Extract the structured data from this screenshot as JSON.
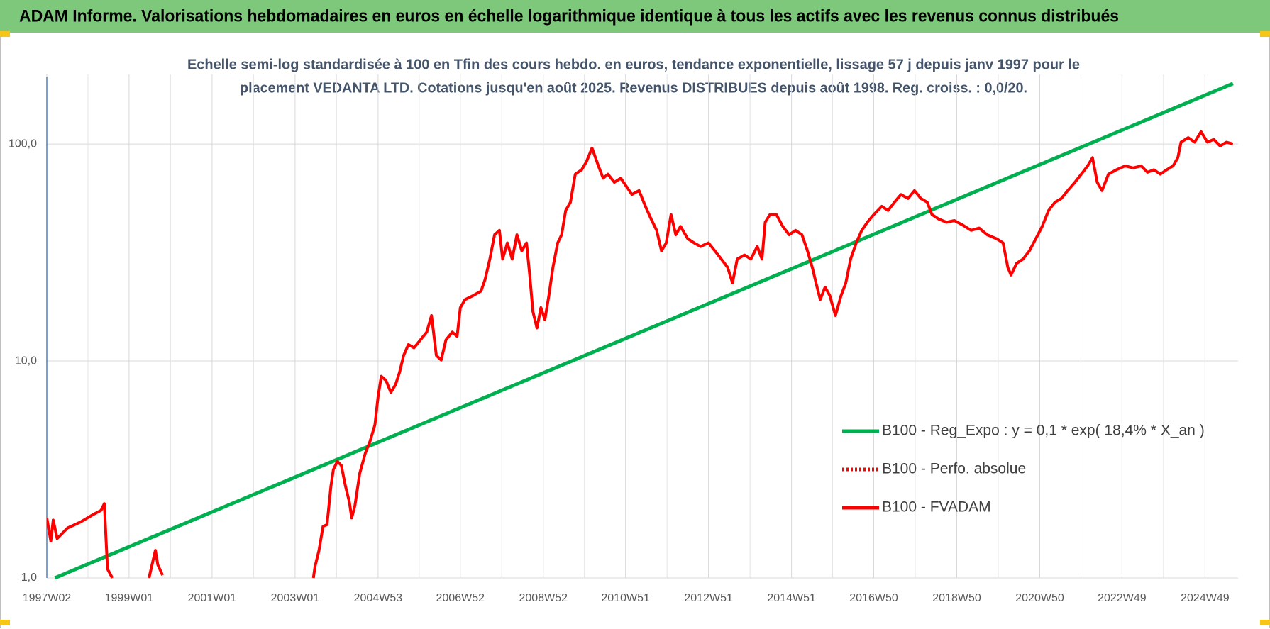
{
  "chart_data": {
    "type": "line",
    "title": "ADAM Informe. Valorisations hebdomadaires en euros en échelle logarithmique identique à tous les actifs avec les revenus connus distribués",
    "subtitle": [
      "Echelle semi-log standardisée à 100 en Tfin des cours hebdo. en euros, tendance exponentielle, lissage 57 j depuis janv 1997 pour le",
      "placement VEDANTA LTD. Cotations jusqu'en août 2025. Revenus DISTRIBUES depuis août 1998. Reg. croiss. : 0,0/20."
    ],
    "log_scale": true,
    "grid": true,
    "legend": "right",
    "ylim": [
      1,
      200
    ],
    "yticks": [
      {
        "value": 1,
        "label": "1,0"
      },
      {
        "value": 10,
        "label": "10,0"
      },
      {
        "value": 100,
        "label": "100,0"
      }
    ],
    "xticks": [
      "1997W02",
      "1999W01",
      "2001W01",
      "2003W01",
      "2004W53",
      "2006W52",
      "2008W52",
      "2010W51",
      "2012W51",
      "2014W51",
      "2016W50",
      "2018W50",
      "2020W50",
      "2022W49",
      "2024W49"
    ],
    "series": [
      {
        "name": "B100 - Reg_Expo : y = 0,1 * exp( 18,4% *  X_an )",
        "color": "#00b050",
        "dash": "solid",
        "x": [
          "1997W12",
          "2025W32"
        ],
        "values": [
          1.0,
          190
        ]
      },
      {
        "name": "B100 - Perfo. absolue",
        "color": "#ff0000",
        "dash": "dotted",
        "x": [],
        "values": []
      },
      {
        "name": "B100 - FVADAM",
        "color": "#ff0000",
        "dash": "solid",
        "x": [
          "1997W02",
          "1997W07",
          "1997W10",
          "1997W15",
          "1997W28",
          "1997W44",
          "1998W07",
          "1998W18",
          "1998W22",
          "1998W26",
          "1998W32",
          null,
          "1999W26",
          "1999W34",
          "1999W37",
          "1999W43",
          null,
          "2003W24",
          "2003W26",
          "2003W31",
          "2003W36",
          "2003W41",
          "2003W46",
          "2003W49",
          "2004W02",
          "2004W07",
          "2004W12",
          "2004W17",
          "2004W20",
          "2004W24",
          "2004W30",
          "2004W37",
          "2004W43",
          "2004W49",
          "2005W01",
          "2005W05",
          "2005W11",
          "2005W17",
          "2005W23",
          "2005W28",
          "2005W33",
          "2005W39",
          "2005W46",
          "2006W02",
          "2006W10",
          "2006W16",
          "2006W22",
          "2006W28",
          "2006W34",
          "2006W42",
          "2006W48",
          "2006W52",
          "2007W06",
          "2007W16",
          "2007W26",
          "2007W31",
          "2007W37",
          "2007W43",
          "2007W49",
          "2008W01",
          "2008W07",
          "2008W13",
          "2008W19",
          "2008W25",
          "2008W31",
          "2008W35",
          "2008W39",
          "2008W44",
          "2008W49",
          "2009W02",
          "2009W07",
          "2009W12",
          "2009W18",
          "2009W23",
          "2009W28",
          "2009W34",
          "2009W40",
          "2009W48",
          "2010W02",
          "2010W09",
          "2010W17",
          "2010W23",
          "2010W29",
          "2010W37",
          "2010W45",
          "2010W52",
          "2011W07",
          "2011W16",
          "2011W24",
          "2011W31",
          "2011W38",
          "2011W44",
          "2011W50",
          "2012W04",
          "2012W10",
          "2012W16",
          "2012W25",
          "2012W33",
          "2012W41",
          "2012W51",
          "2013W07",
          "2013W15",
          "2013W23",
          "2013W29",
          "2013W35",
          "2013W44",
          "2013W52",
          "2014W08",
          "2014W14",
          "2014W18",
          "2014W24",
          "2014W32",
          "2014W40",
          "2014W48",
          "2015W04",
          "2015W12",
          "2015W19",
          "2015W25",
          "2015W31",
          "2015W35",
          "2015W41",
          "2015W47",
          "2016W02",
          "2016W09",
          "2016W15",
          "2016W21",
          "2016W28",
          "2016W35",
          "2016W42",
          "2016W50",
          "2017W08",
          "2017W16",
          "2017W24",
          "2017W32",
          "2017W41",
          "2017W49",
          "2018W05",
          "2018W13",
          "2018W19",
          "2018W27",
          "2018W37",
          "2018W47",
          "2019W05",
          "2019W16",
          "2019W26",
          "2019W36",
          "2019W48",
          "2020W04",
          "2020W10",
          "2020W14",
          "2020W21",
          "2020W29",
          "2020W37",
          "2020W45",
          "2021W01",
          "2021W09",
          "2021W17",
          "2021W25",
          "2021W33",
          "2021W42",
          "2021W50",
          "2022W06",
          "2022W12",
          "2022W18",
          "2022W24",
          "2022W32",
          "2022W42",
          "2023W01",
          "2023W11",
          "2023W21",
          "2023W29",
          "2023W37",
          "2023W45",
          "2024W01",
          "2024W09",
          "2024W15",
          "2024W19",
          "2024W28",
          "2024W36",
          "2024W44",
          "2024W52",
          "2025W08",
          "2025W16",
          "2025W24",
          "2025W32"
        ],
        "values": [
          1.89,
          1.48,
          1.85,
          1.52,
          1.7,
          1.81,
          1.95,
          2.05,
          2.2,
          1.1,
          1.0,
          null,
          1.0,
          1.34,
          1.15,
          1.03,
          null,
          1.0,
          1.13,
          1.34,
          1.73,
          1.76,
          2.66,
          3.16,
          3.45,
          3.3,
          2.66,
          2.24,
          1.89,
          2.15,
          3.03,
          3.76,
          4.27,
          5.07,
          6.85,
          8.5,
          8.13,
          7.16,
          7.8,
          8.9,
          10.6,
          11.9,
          11.5,
          12.5,
          13.6,
          16.2,
          10.6,
          10.1,
          12.5,
          13.6,
          13.0,
          17.6,
          19.2,
          20.0,
          21.0,
          23.7,
          29.5,
          38.2,
          40.0,
          29.5,
          35.0,
          29.5,
          38.2,
          32.2,
          35.0,
          24.9,
          16.9,
          14.2,
          17.6,
          15.5,
          20.0,
          27.0,
          35.0,
          38.2,
          49.4,
          53.9,
          72.6,
          76.1,
          82.8,
          95.9,
          79.3,
          69.6,
          72.6,
          66.6,
          69.6,
          63.8,
          58.5,
          61.0,
          51.6,
          45.2,
          40.0,
          32.2,
          35.0,
          47.3,
          38.2,
          41.7,
          36.6,
          35.0,
          33.7,
          35.0,
          32.2,
          29.5,
          27.0,
          22.9,
          29.5,
          30.8,
          29.5,
          33.7,
          29.5,
          43.6,
          47.3,
          47.3,
          41.7,
          38.2,
          40.0,
          38.2,
          32.2,
          27.0,
          21.9,
          19.2,
          21.9,
          20.0,
          16.2,
          20.0,
          22.9,
          29.5,
          35.0,
          40.0,
          43.6,
          47.3,
          51.6,
          49.4,
          53.9,
          58.5,
          56.1,
          61.0,
          56.1,
          53.9,
          47.3,
          45.2,
          43.6,
          44.4,
          42.4,
          40.0,
          41.0,
          38.2,
          36.6,
          35.0,
          27.0,
          24.9,
          28.2,
          29.5,
          32.2,
          36.6,
          41.7,
          49.4,
          53.9,
          56.1,
          61.0,
          66.6,
          72.6,
          79.3,
          86.5,
          66.6,
          61.0,
          72.6,
          76.1,
          79.3,
          77.6,
          79.3,
          74.1,
          76.1,
          72.6,
          76.1,
          79.3,
          86.5,
          102,
          107,
          102,
          114,
          102,
          105,
          98,
          102,
          100
        ]
      }
    ]
  }
}
